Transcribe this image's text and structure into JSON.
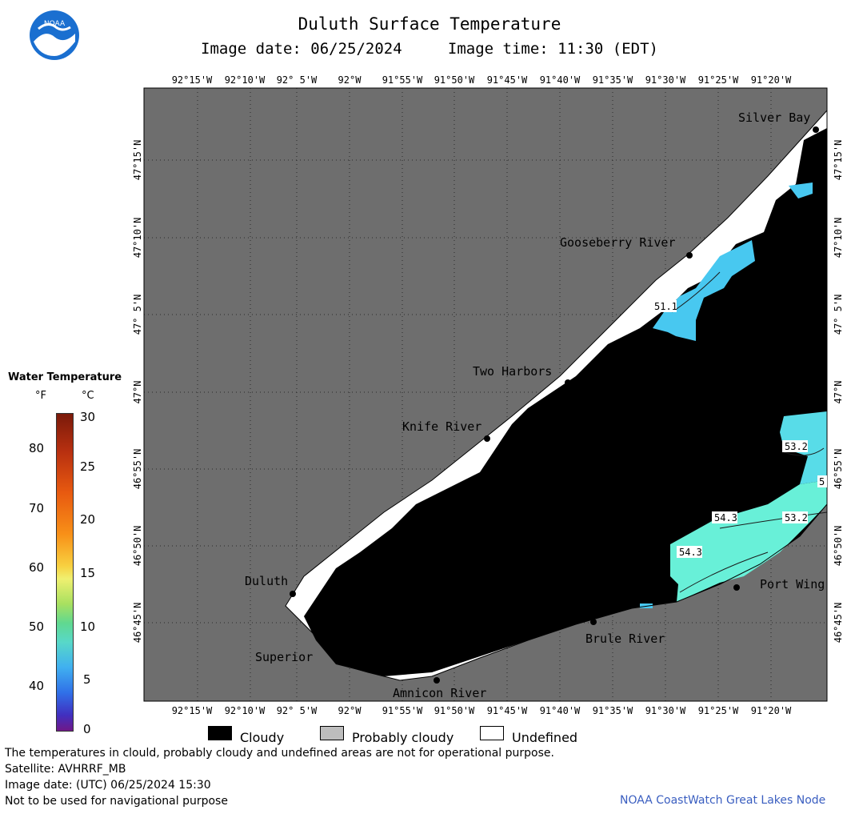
{
  "header": {
    "title": "Duluth Surface Temperature",
    "image_date": "Image date: 06/25/2024",
    "image_time": "Image time: 11:30 (EDT)",
    "logo_text": "NOAA"
  },
  "map": {
    "lon_labels": [
      "92°15'W",
      "92°10'W",
      "92° 5'W",
      "92°W",
      "91°55'W",
      "91°50'W",
      "91°45'W",
      "91°40'W",
      "91°35'W",
      "91°30'W",
      "91°25'W",
      "91°20'W"
    ],
    "lat_labels": [
      "47°15'N",
      "47°10'N",
      "47° 5'N",
      "47°N",
      "46°55'N",
      "46°50'N",
      "46°45'N"
    ],
    "places": {
      "silver_bay": "Silver Bay",
      "gooseberry": "Gooseberry River",
      "two_harbors": "Two Harbors",
      "knife_river": "Knife River",
      "duluth": "Duluth",
      "superior": "Superior",
      "amnicon": "Amnicon River",
      "brule": "Brule River",
      "port_wing": "Port Wing"
    },
    "contours": {
      "c1": "51.1",
      "c2": "53.2",
      "c3": "5",
      "c4": "54.3",
      "c5": "53.2",
      "c6": "54.3"
    },
    "colors": {
      "land": "#6e6e6e",
      "cloud": "#000000",
      "undefined": "#ffffff",
      "water_51": "#48c8f0",
      "water_54": "#68f0d8"
    }
  },
  "colorbar": {
    "title": "Water Temperature",
    "unit_f": "°F",
    "unit_c": "°C",
    "f_ticks": [
      "80",
      "70",
      "60",
      "50",
      "40"
    ],
    "c_ticks": [
      "30",
      "25",
      "20",
      "15",
      "10",
      "5",
      "0"
    ]
  },
  "legend": {
    "cloudy": "Cloudy",
    "probably_cloudy": "Probably cloudy",
    "undefined": "Undefined"
  },
  "footer": {
    "line1": "The temperatures in clould, probably cloudy and undefined areas are not for operational purpose.",
    "line2": "Satellite: AVHRRF_MB",
    "line3": "Image date: (UTC) 06/25/2024  15:30",
    "line4": "Not to be used for navigational purpose",
    "credit": "NOAA CoastWatch Great Lakes Node"
  }
}
